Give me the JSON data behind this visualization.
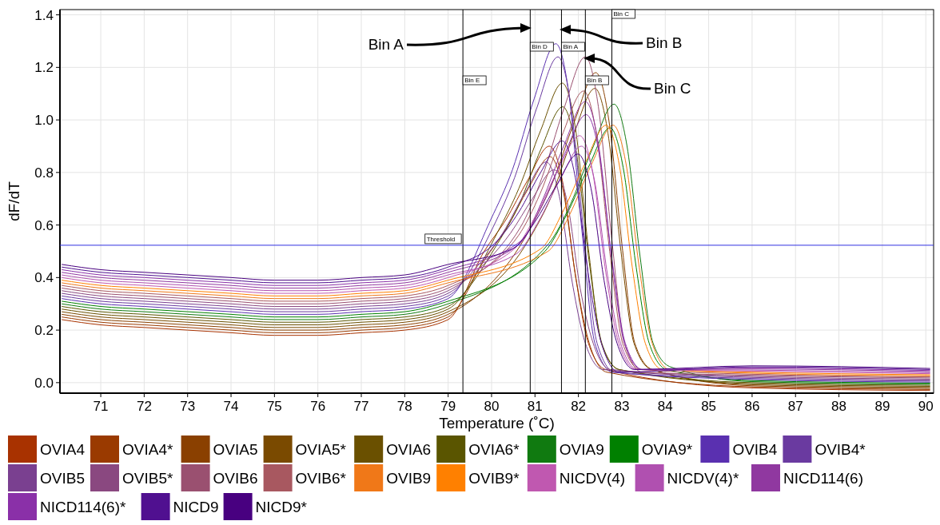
{
  "chart_data": {
    "type": "line",
    "xlabel": "Temperature (˚C)",
    "ylabel": "dF/dT",
    "xlim": [
      70.06,
      90.18
    ],
    "ylim": [
      -0.04,
      1.42
    ],
    "xticks": [
      71,
      72,
      73,
      74,
      75,
      76,
      77,
      78,
      79,
      80,
      81,
      82,
      83,
      84,
      85,
      86,
      87,
      88,
      89,
      90
    ],
    "yticks": [
      {
        "value": 0,
        "label": "0.0"
      },
      {
        "value": 0.2,
        "label": "0.2"
      },
      {
        "value": 0.4,
        "label": "0.4"
      },
      {
        "value": 0.6,
        "label": "0.6"
      },
      {
        "value": 0.8,
        "label": "0.8"
      },
      {
        "value": 1.0,
        "label": "1.0"
      },
      {
        "value": 1.2,
        "label": "1.2"
      },
      {
        "value": 1.4,
        "label": "1.4"
      }
    ],
    "grid": true,
    "legend": "bottom",
    "marker": "none",
    "line_style": "solid",
    "ref_lines": [
      {
        "axis": "x",
        "value": 79.34,
        "label": "Bin E",
        "color": "#000000"
      },
      {
        "axis": "x",
        "value": 80.89,
        "label": "Bin D",
        "color": "#000000"
      },
      {
        "axis": "x",
        "value": 81.61,
        "label": "Bin A",
        "color": "#000000"
      },
      {
        "axis": "x",
        "value": 82.16,
        "label": "Bin B",
        "color": "#000000"
      },
      {
        "axis": "x",
        "value": 82.77,
        "label": "Bin C",
        "color": "#000000"
      },
      {
        "axis": "y",
        "value": 0.523,
        "label": "Threshold",
        "color": "#3030e0"
      }
    ],
    "annotations": [
      "Bin A",
      "Bin B",
      "Bin C"
    ],
    "series": [
      {
        "name": "OVIA4",
        "color": "#a83200",
        "x": [
          70.1,
          71,
          72,
          73,
          74,
          75,
          76,
          77,
          78,
          79,
          79.83,
          80.33,
          80.83,
          81.33,
          81.63,
          81.93,
          82.23,
          82.63,
          86,
          90.1
        ],
        "values": [
          0.24,
          0.22,
          0.21,
          0.2,
          0.19,
          0.18,
          0.18,
          0.19,
          0.2,
          0.24,
          0.5,
          0.62,
          0.77,
          0.9,
          0.77,
          0.41,
          0.15,
          0.05,
          -0.02,
          -0.03
        ]
      },
      {
        "name": "OVIA4*",
        "color": "#9a3a00",
        "x": [
          70.1,
          71,
          72,
          73,
          74,
          75,
          76,
          77,
          78,
          79,
          79.85,
          80.35,
          80.85,
          81.35,
          81.65,
          81.95,
          82.25,
          82.65,
          86,
          90.1
        ],
        "values": [
          0.25,
          0.23,
          0.22,
          0.21,
          0.2,
          0.19,
          0.19,
          0.2,
          0.21,
          0.25,
          0.47,
          0.59,
          0.74,
          0.86,
          0.73,
          0.39,
          0.15,
          0.04,
          -0.016,
          -0.026
        ]
      },
      {
        "name": "OVIA5",
        "color": "#8a4000",
        "x": [
          70.1,
          71,
          72,
          73,
          74,
          75,
          76,
          77,
          78,
          79,
          80.9,
          81.4,
          81.9,
          82.4,
          82.7,
          83.0,
          83.3,
          83.7,
          86,
          90.1
        ],
        "values": [
          0.26,
          0.24,
          0.23,
          0.22,
          0.21,
          0.2,
          0.2,
          0.21,
          0.22,
          0.26,
          0.59,
          0.76,
          0.99,
          1.18,
          1.0,
          0.53,
          0.15,
          0.05,
          -0.012,
          -0.022
        ]
      },
      {
        "name": "OVIA5*",
        "color": "#7a4a00",
        "x": [
          70.1,
          71,
          72,
          73,
          74,
          75,
          76,
          77,
          78,
          79,
          80.88,
          81.38,
          81.88,
          82.38,
          82.68,
          82.98,
          83.28,
          83.68,
          86,
          90.1
        ],
        "values": [
          0.27,
          0.25,
          0.24,
          0.23,
          0.22,
          0.21,
          0.21,
          0.22,
          0.23,
          0.27,
          0.55,
          0.71,
          0.94,
          1.12,
          0.95,
          0.5,
          0.15,
          0.05,
          -0.008,
          -0.018
        ]
      },
      {
        "name": "OVIA6",
        "color": "#6a5000",
        "x": [
          70.1,
          71,
          72,
          73,
          74,
          75,
          76,
          77,
          78,
          79,
          80.13,
          80.63,
          81.13,
          81.63,
          81.93,
          82.23,
          82.53,
          82.93,
          86,
          90.1
        ],
        "values": [
          0.28,
          0.26,
          0.25,
          0.24,
          0.23,
          0.22,
          0.22,
          0.23,
          0.24,
          0.28,
          0.57,
          0.74,
          0.96,
          1.14,
          0.97,
          0.51,
          0.15,
          0.05,
          -0.004,
          -0.014
        ]
      },
      {
        "name": "OVIA6*",
        "color": "#5a5500",
        "x": [
          70.1,
          71,
          72,
          73,
          74,
          75,
          76,
          77,
          78,
          79,
          80.14,
          80.64,
          81.14,
          81.64,
          81.94,
          82.24,
          82.54,
          82.94,
          86,
          90.1
        ],
        "values": [
          0.29,
          0.27,
          0.26,
          0.25,
          0.24,
          0.23,
          0.23,
          0.24,
          0.25,
          0.29,
          0.53,
          0.68,
          0.89,
          1.05,
          0.89,
          0.47,
          0.15,
          0.05,
          0.0,
          -0.01
        ]
      },
      {
        "name": "OVIA9",
        "color": "#107a10",
        "x": [
          70.1,
          71,
          72,
          73,
          74,
          75,
          76,
          77,
          78,
          79,
          81.32,
          81.82,
          82.32,
          82.82,
          83.12,
          83.42,
          83.72,
          84.12,
          86,
          90.1
        ],
        "values": [
          0.3,
          0.28,
          0.27,
          0.26,
          0.25,
          0.24,
          0.24,
          0.25,
          0.26,
          0.3,
          0.53,
          0.68,
          0.89,
          1.06,
          0.9,
          0.48,
          0.15,
          0.06,
          0.004,
          -0.006
        ]
      },
      {
        "name": "OVIA9*",
        "color": "#008000",
        "x": [
          70.1,
          71,
          72,
          73,
          74,
          75,
          76,
          77,
          78,
          79,
          81.23,
          81.73,
          82.23,
          82.73,
          83.03,
          83.33,
          83.63,
          84.03,
          86,
          90.1
        ],
        "values": [
          0.31,
          0.29,
          0.28,
          0.27,
          0.26,
          0.25,
          0.25,
          0.26,
          0.27,
          0.31,
          0.5,
          0.64,
          0.82,
          0.97,
          0.82,
          0.44,
          0.15,
          0.05,
          0.008,
          -0.002
        ]
      },
      {
        "name": "OVIB4",
        "color": "#5a30b0",
        "x": [
          70.1,
          71,
          72,
          73,
          74,
          75,
          76,
          77,
          78,
          79,
          79.98,
          80.48,
          80.98,
          81.48,
          81.78,
          82.08,
          82.38,
          82.78,
          86,
          90.1
        ],
        "values": [
          0.32,
          0.3,
          0.29,
          0.28,
          0.27,
          0.26,
          0.26,
          0.27,
          0.28,
          0.32,
          0.62,
          0.81,
          1.08,
          1.29,
          1.1,
          0.58,
          0.15,
          0.04,
          0.012,
          0.002
        ]
      },
      {
        "name": "OVIB4*",
        "color": "#6a3aa0",
        "x": [
          70.1,
          71,
          72,
          73,
          74,
          75,
          76,
          77,
          78,
          79,
          80.03,
          80.53,
          81.03,
          81.53,
          81.83,
          82.13,
          82.43,
          82.83,
          86,
          90.1
        ],
        "values": [
          0.33,
          0.31,
          0.3,
          0.29,
          0.28,
          0.27,
          0.27,
          0.28,
          0.29,
          0.33,
          0.59,
          0.78,
          1.04,
          1.24,
          1.05,
          0.56,
          0.15,
          0.04,
          0.016,
          0.006
        ]
      },
      {
        "name": "OVIB5",
        "color": "#7a4090",
        "x": [
          70.1,
          71,
          72,
          73,
          74,
          75,
          76,
          77,
          78,
          79,
          79.76,
          80.26,
          80.76,
          81.26,
          81.56,
          81.86,
          82.16,
          82.56,
          86,
          90.1
        ],
        "values": [
          0.34,
          0.32,
          0.31,
          0.3,
          0.29,
          0.28,
          0.28,
          0.29,
          0.3,
          0.34,
          0.46,
          0.57,
          0.72,
          0.84,
          0.71,
          0.38,
          0.15,
          0.05,
          0.02,
          0.01
        ]
      },
      {
        "name": "OVIB5*",
        "color": "#8a4880",
        "x": [
          70.1,
          71,
          72,
          73,
          74,
          75,
          76,
          77,
          78,
          79,
          79.94,
          80.44,
          80.94,
          81.44,
          81.74,
          82.04,
          82.34,
          82.74,
          86,
          90.1
        ],
        "values": [
          0.35,
          0.33,
          0.32,
          0.31,
          0.3,
          0.29,
          0.29,
          0.3,
          0.31,
          0.35,
          0.47,
          0.57,
          0.7,
          0.81,
          0.69,
          0.36,
          0.15,
          0.05,
          0.024,
          0.014
        ]
      },
      {
        "name": "OVIB6",
        "color": "#9a5070",
        "x": [
          70.1,
          71,
          72,
          73,
          74,
          75,
          76,
          77,
          78,
          79,
          80.66,
          81.16,
          81.66,
          82.16,
          82.46,
          82.76,
          83.06,
          83.46,
          86,
          90.1
        ],
        "values": [
          0.36,
          0.34,
          0.33,
          0.32,
          0.31,
          0.3,
          0.3,
          0.31,
          0.32,
          0.36,
          0.59,
          0.78,
          1.04,
          1.24,
          1.05,
          0.56,
          0.15,
          0.04,
          0.028,
          0.018
        ]
      },
      {
        "name": "OVIB6*",
        "color": "#a85860",
        "x": [
          70.1,
          71,
          72,
          73,
          74,
          75,
          76,
          77,
          78,
          79,
          80.62,
          81.12,
          81.62,
          82.12,
          82.42,
          82.72,
          83.02,
          83.42,
          86,
          90.1
        ],
        "values": [
          0.37,
          0.35,
          0.34,
          0.33,
          0.32,
          0.31,
          0.31,
          0.32,
          0.33,
          0.37,
          0.56,
          0.72,
          0.94,
          1.11,
          0.94,
          0.5,
          0.15,
          0.05,
          0.032,
          0.022
        ]
      },
      {
        "name": "OVIB9",
        "color": "#f07818",
        "x": [
          70.1,
          71,
          72,
          73,
          74,
          75,
          76,
          77,
          78,
          79,
          81.3,
          81.8,
          82.3,
          82.8,
          83.1,
          83.4,
          83.7,
          84.1,
          86,
          90.1
        ],
        "values": [
          0.38,
          0.36,
          0.35,
          0.34,
          0.33,
          0.32,
          0.32,
          0.33,
          0.34,
          0.38,
          0.5,
          0.64,
          0.83,
          0.98,
          0.83,
          0.44,
          0.15,
          0.05,
          0.036,
          0.026
        ]
      },
      {
        "name": "OVIB9*",
        "color": "#ff8000",
        "x": [
          70.1,
          71,
          72,
          73,
          74,
          75,
          76,
          77,
          78,
          79,
          81.14,
          81.64,
          82.14,
          82.64,
          82.94,
          83.24,
          83.54,
          83.94,
          86,
          90.1
        ],
        "values": [
          0.39,
          0.37,
          0.36,
          0.35,
          0.34,
          0.33,
          0.33,
          0.34,
          0.35,
          0.39,
          0.51,
          0.65,
          0.83,
          0.98,
          0.83,
          0.44,
          0.15,
          0.05,
          0.04,
          0.03
        ]
      },
      {
        "name": "NICDV(4)",
        "color": "#c058b0",
        "x": [
          70.1,
          71,
          72,
          73,
          74,
          75,
          76,
          77,
          78,
          79,
          80.53,
          81.03,
          81.53,
          82.03,
          82.33,
          82.63,
          82.93,
          83.33,
          86,
          90.1
        ],
        "values": [
          0.4,
          0.38,
          0.37,
          0.36,
          0.35,
          0.34,
          0.34,
          0.35,
          0.36,
          0.4,
          0.51,
          0.64,
          0.81,
          0.94,
          0.8,
          0.42,
          0.15,
          0.05,
          0.044,
          0.034
        ]
      },
      {
        "name": "NICDV(4)*",
        "color": "#b050b0",
        "x": [
          70.1,
          71,
          72,
          73,
          74,
          75,
          76,
          77,
          78,
          79,
          80.57,
          81.07,
          81.57,
          82.07,
          82.37,
          82.67,
          82.97,
          83.37,
          86,
          90.1
        ],
        "values": [
          0.41,
          0.39,
          0.38,
          0.37,
          0.36,
          0.35,
          0.35,
          0.36,
          0.37,
          0.41,
          0.49,
          0.61,
          0.77,
          0.9,
          0.77,
          0.41,
          0.15,
          0.05,
          0.048,
          0.038
        ]
      },
      {
        "name": "NICD114(6)",
        "color": "#9038a0",
        "x": [
          70.1,
          71,
          72,
          73,
          74,
          75,
          76,
          77,
          78,
          79,
          80.66,
          81.16,
          81.66,
          82.16,
          82.46,
          82.76,
          83.06,
          83.46,
          86,
          90.1
        ],
        "values": [
          0.42,
          0.4,
          0.39,
          0.38,
          0.37,
          0.36,
          0.36,
          0.37,
          0.38,
          0.42,
          0.53,
          0.69,
          0.9,
          1.07,
          0.91,
          0.48,
          0.15,
          0.05,
          0.052,
          0.042
        ]
      },
      {
        "name": "NICD114(6)*",
        "color": "#8a30a8",
        "x": [
          70.1,
          71,
          72,
          73,
          74,
          75,
          76,
          77,
          78,
          79,
          80.68,
          81.18,
          81.68,
          82.18,
          82.48,
          82.78,
          83.08,
          83.48,
          86,
          90.1
        ],
        "values": [
          0.43,
          0.41,
          0.4,
          0.39,
          0.38,
          0.37,
          0.37,
          0.38,
          0.39,
          0.43,
          0.54,
          0.68,
          0.87,
          1.02,
          0.87,
          0.46,
          0.15,
          0.05,
          0.056,
          0.046
        ]
      },
      {
        "name": "NICD9",
        "color": "#501090",
        "x": [
          70.1,
          71,
          72,
          73,
          74,
          75,
          76,
          77,
          78,
          79,
          80.13,
          80.63,
          81.13,
          81.63,
          81.93,
          82.23,
          82.53,
          82.93,
          86,
          90.1
        ],
        "values": [
          0.44,
          0.42,
          0.41,
          0.4,
          0.39,
          0.38,
          0.38,
          0.39,
          0.4,
          0.44,
          0.54,
          0.65,
          0.8,
          0.92,
          0.78,
          0.41,
          0.15,
          0.04,
          0.06,
          0.05
        ]
      },
      {
        "name": "NICD9*",
        "color": "#480080",
        "x": [
          70.1,
          71,
          72,
          73,
          74,
          75,
          76,
          77,
          78,
          79,
          80.49,
          80.99,
          81.49,
          81.99,
          82.29,
          82.59,
          82.89,
          83.29,
          86,
          90.1
        ],
        "values": [
          0.45,
          0.43,
          0.42,
          0.41,
          0.4,
          0.39,
          0.39,
          0.4,
          0.41,
          0.45,
          0.51,
          0.61,
          0.75,
          0.87,
          0.74,
          0.39,
          0.15,
          0.05,
          0.064,
          0.054
        ]
      }
    ]
  }
}
